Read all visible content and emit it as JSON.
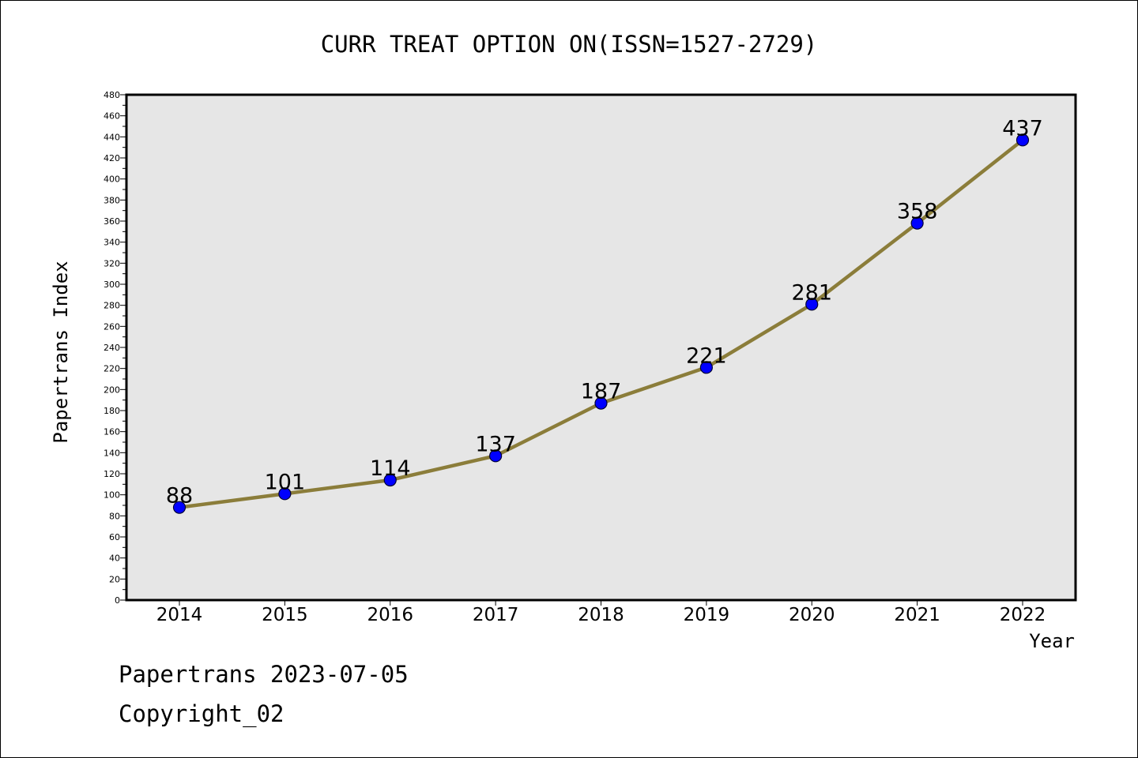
{
  "chart_data": {
    "type": "line",
    "title": "CURR TREAT OPTION ON(ISSN=1527-2729)",
    "xlabel": "Year",
    "ylabel": "Papertrans Index",
    "categories": [
      "2014",
      "2015",
      "2016",
      "2017",
      "2018",
      "2019",
      "2020",
      "2021",
      "2022"
    ],
    "values": [
      88,
      101,
      114,
      137,
      187,
      221,
      281,
      358,
      437
    ],
    "ylim": [
      0,
      480
    ],
    "y_major_step": 20,
    "y_minor_step": 10,
    "y_ticks": [
      "0",
      "20",
      "40",
      "60",
      "80",
      "100",
      "120",
      "140",
      "160",
      "180",
      "200",
      "220",
      "240",
      "260",
      "280",
      "300",
      "320",
      "340",
      "360",
      "380",
      "400",
      "420",
      "440",
      "460",
      "480"
    ],
    "data_labels": true,
    "grid": false,
    "line_color": "#8b7d3a",
    "marker_color": "#0000ff",
    "plot_background": "#e6e6e6"
  },
  "footer": {
    "line1": "Papertrans 2023-07-05",
    "line2": "Copyright_02"
  }
}
